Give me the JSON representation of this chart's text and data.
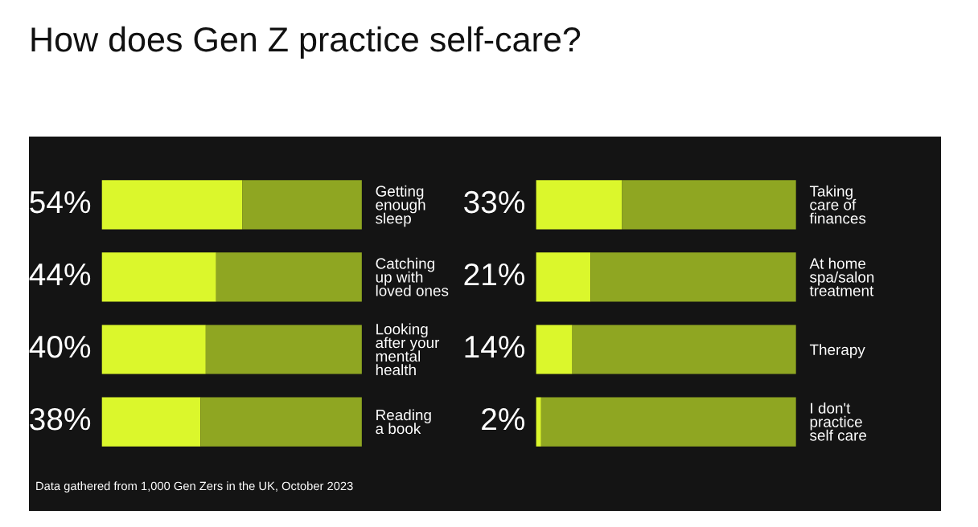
{
  "chart_data": [
    {
      "type": "bar",
      "orientation": "horizontal",
      "stacked": true,
      "title": "How does Gen Z practice self-care?",
      "categories": [
        "Getting\nenough\nsleep",
        "Catching\nup with\nloved ones",
        "Looking\nafter your\nmental\nhealth",
        "Reading\na book"
      ],
      "series": [
        {
          "color": "#dbf72c",
          "values": [
            54,
            44,
            40,
            38
          ],
          "value_labels": [
            "54%",
            "44%",
            "40%",
            "38%"
          ]
        },
        {
          "color": "#8fa622",
          "values": [
            46,
            56,
            60,
            62
          ]
        }
      ],
      "xlim": [
        0,
        100
      ],
      "tick_labels": "y",
      "annotations": [
        "Data gathered from 1,000 Gen Zers in the UK, October 2023"
      ]
    },
    {
      "type": "bar",
      "orientation": "horizontal",
      "stacked": true,
      "categories": [
        "Taking\ncare of\nfinances",
        "At home\nspa/salon\ntreatment",
        "Therapy",
        "I don't\npractice\nself care"
      ],
      "series": [
        {
          "color": "#dbf72c",
          "values": [
            33,
            21,
            14,
            2
          ],
          "value_labels": [
            "33%",
            "21%",
            "14%",
            "2%"
          ]
        },
        {
          "color": "#8fa622",
          "values": [
            67,
            79,
            86,
            98
          ]
        }
      ],
      "xlim": [
        0,
        100
      ],
      "tick_labels": "y"
    }
  ]
}
